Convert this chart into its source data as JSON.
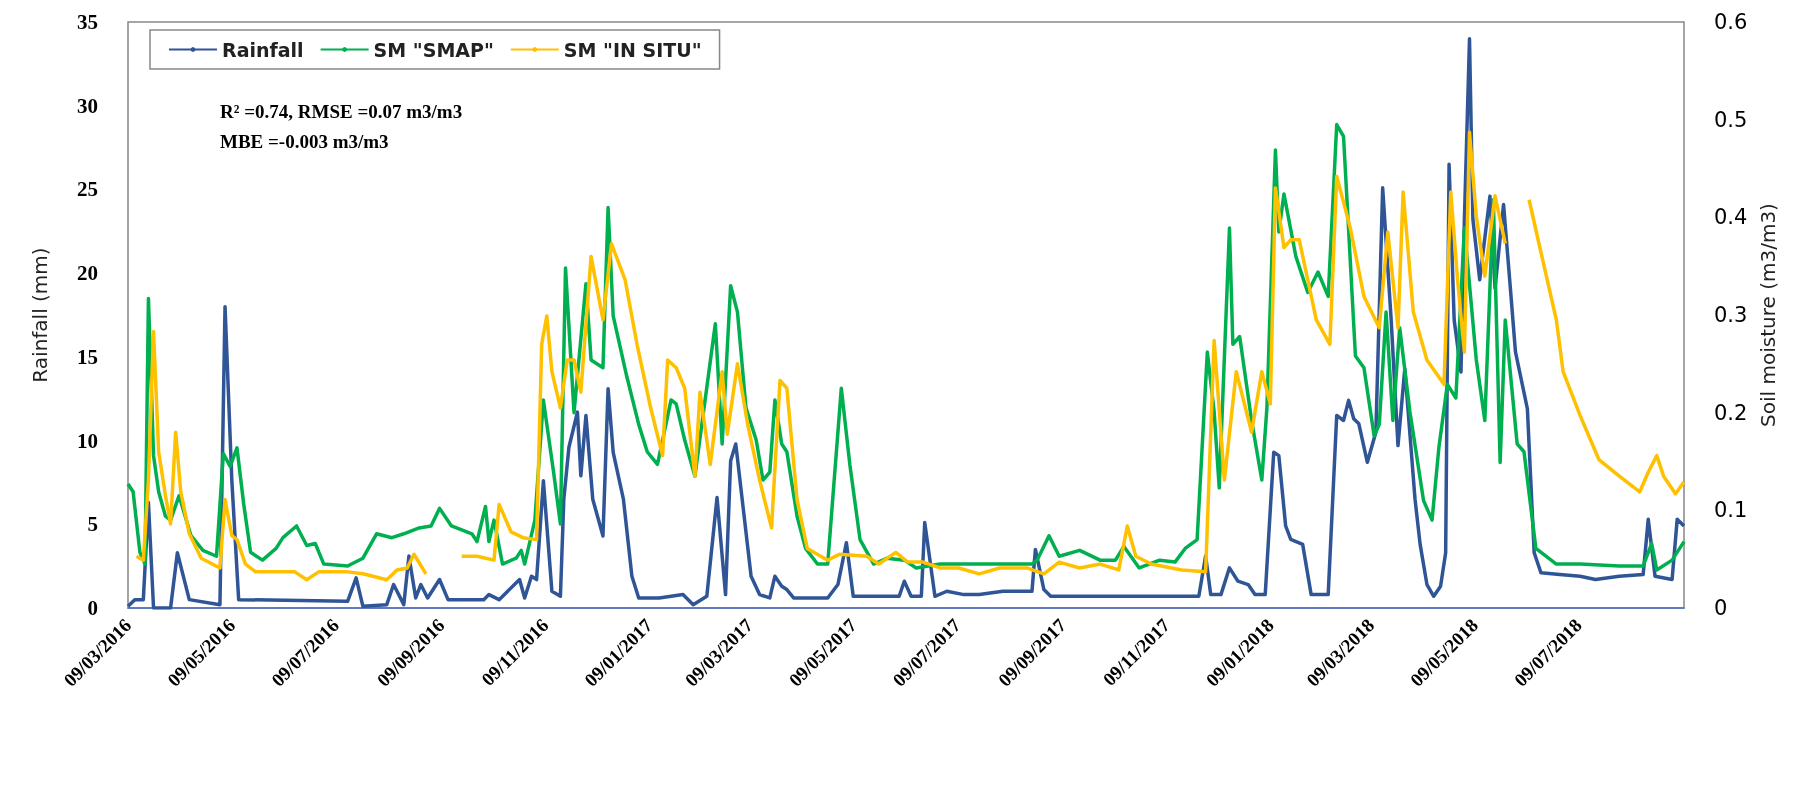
{
  "chart_data": {
    "type": "line",
    "xlabel": null,
    "ylabel": "Rainfall (mm)",
    "y2label": "Soil moisture (m3/m3)",
    "annotations": [
      "R² =0.74, RMSE =0.07 m3/m3",
      "MBE =-0.003 m3/m3"
    ],
    "legend": "top left",
    "grid": false,
    "marker": "none",
    "xlim": [
      "2016-03-09",
      "2018-09-09"
    ],
    "xticks": [
      {
        "value": "2016-03-09",
        "label": "09/03/2016"
      },
      {
        "value": "2016-05-09",
        "label": "09/05/2016"
      },
      {
        "value": "2016-07-09",
        "label": "09/07/2016"
      },
      {
        "value": "2016-09-09",
        "label": "09/09/2016"
      },
      {
        "value": "2016-11-09",
        "label": "09/11/2016"
      },
      {
        "value": "2017-01-09",
        "label": "09/01/2017"
      },
      {
        "value": "2017-03-09",
        "label": "09/03/2017"
      },
      {
        "value": "2017-05-09",
        "label": "09/05/2017"
      },
      {
        "value": "2017-07-09",
        "label": "09/07/2017"
      },
      {
        "value": "2017-09-09",
        "label": "09/09/2017"
      },
      {
        "value": "2017-11-09",
        "label": "09/11/2017"
      },
      {
        "value": "2018-01-09",
        "label": "09/01/2018"
      },
      {
        "value": "2018-03-09",
        "label": "09/03/2018"
      },
      {
        "value": "2018-05-09",
        "label": "09/05/2018"
      },
      {
        "value": "2018-07-09",
        "label": "09/07/2018"
      }
    ],
    "ylim": [
      0,
      35
    ],
    "yticks": [
      0,
      5,
      10,
      15,
      20,
      25,
      30,
      35
    ],
    "y2lim": [
      0,
      0.6
    ],
    "y2ticks": [
      0,
      0.1,
      0.2,
      0.3,
      0.4,
      0.5,
      0.6
    ],
    "series": [
      {
        "name": "Rainfall",
        "color": "#2f5597",
        "x": [
          "2016-03-09",
          "2016-03-13",
          "2016-03-18",
          "2016-03-21",
          "2016-03-24",
          "2016-04-03",
          "2016-04-07",
          "2016-04-14",
          "2016-05-02",
          "2016-05-05",
          "2016-05-09",
          "2016-05-13",
          "2016-07-16",
          "2016-07-21",
          "2016-07-25",
          "2016-08-08",
          "2016-08-12",
          "2016-08-18",
          "2016-08-21",
          "2016-08-25",
          "2016-08-28",
          "2016-09-01",
          "2016-09-08",
          "2016-09-13",
          "2016-10-04",
          "2016-10-07",
          "2016-10-13",
          "2016-10-25",
          "2016-10-28",
          "2016-11-01",
          "2016-11-04",
          "2016-11-08",
          "2016-11-13",
          "2016-11-18",
          "2016-11-20",
          "2016-11-23",
          "2016-11-28",
          "2016-11-30",
          "2016-12-03",
          "2016-12-07",
          "2016-12-13",
          "2016-12-16",
          "2016-12-19",
          "2016-12-25",
          "2016-12-30",
          "2017-01-03",
          "2017-01-15",
          "2017-01-29",
          "2017-02-04",
          "2017-02-12",
          "2017-02-18",
          "2017-02-23",
          "2017-02-26",
          "2017-03-01",
          "2017-03-10",
          "2017-03-15",
          "2017-03-21",
          "2017-03-24",
          "2017-03-28",
          "2017-03-31",
          "2017-04-04",
          "2017-04-24",
          "2017-04-30",
          "2017-05-05",
          "2017-05-09",
          "2017-06-05",
          "2017-06-08",
          "2017-06-12",
          "2017-06-18",
          "2017-06-20",
          "2017-06-26",
          "2017-07-03",
          "2017-07-13",
          "2017-07-22",
          "2017-08-05",
          "2017-08-22",
          "2017-08-24",
          "2017-08-29",
          "2017-09-02",
          "2017-11-28",
          "2017-12-02",
          "2017-12-05",
          "2017-12-11",
          "2017-12-16",
          "2017-12-21",
          "2017-12-27",
          "2017-12-31",
          "2018-01-06",
          "2018-01-11",
          "2018-01-14",
          "2018-01-18",
          "2018-01-21",
          "2018-01-28",
          "2018-02-02",
          "2018-02-12",
          "2018-02-17",
          "2018-02-21",
          "2018-02-24",
          "2018-02-27",
          "2018-03-02",
          "2018-03-07",
          "2018-03-12",
          "2018-03-16",
          "2018-03-21",
          "2018-03-25",
          "2018-03-29",
          "2018-04-04",
          "2018-04-07",
          "2018-04-11",
          "2018-04-15",
          "2018-04-19",
          "2018-04-22",
          "2018-04-24",
          "2018-04-27",
          "2018-05-01",
          "2018-05-03",
          "2018-05-06",
          "2018-05-08",
          "2018-05-12",
          "2018-05-18",
          "2018-05-21",
          "2018-05-26",
          "2018-05-30",
          "2018-06-02",
          "2018-06-09",
          "2018-06-13",
          "2018-06-17",
          "2018-06-28",
          "2018-07-10",
          "2018-07-19",
          "2018-08-02",
          "2018-08-16",
          "2018-08-19",
          "2018-08-23",
          "2018-09-02",
          "2018-09-05",
          "2018-09-09"
        ],
        "values": [
          0.1,
          0.5,
          0.5,
          6.3,
          0,
          0,
          3.3,
          0.5,
          0.2,
          18.0,
          7.6,
          0.5,
          0.4,
          1.8,
          0.1,
          0.2,
          1.4,
          0.2,
          3.1,
          0.6,
          1.4,
          0.6,
          1.7,
          0.5,
          0.5,
          0.8,
          0.5,
          1.7,
          0.6,
          1.9,
          1.7,
          7.6,
          1.0,
          0.7,
          6.5,
          9.6,
          11.7,
          7.9,
          11.5,
          6.5,
          4.3,
          13.1,
          9.3,
          6.5,
          1.9,
          0.6,
          0.6,
          0.8,
          0.2,
          0.7,
          6.6,
          0.8,
          8.8,
          9.8,
          1.9,
          0.8,
          0.6,
          1.9,
          1.3,
          1.1,
          0.6,
          0.6,
          1.4,
          3.9,
          0.7,
          0.7,
          1.6,
          0.7,
          0.7,
          5.1,
          0.7,
          1.0,
          0.8,
          0.8,
          1.0,
          1.0,
          3.5,
          1.1,
          0.7,
          0.7,
          3.1,
          0.8,
          0.8,
          2.4,
          1.6,
          1.4,
          0.8,
          0.8,
          9.3,
          9.1,
          4.9,
          4.1,
          3.8,
          0.8,
          0.8,
          11.5,
          11.2,
          12.4,
          11.3,
          11.0,
          8.7,
          10.5,
          25.1,
          17.2,
          9.7,
          14.3,
          6.5,
          3.8,
          1.4,
          0.7,
          1.3,
          3.3,
          26.5,
          17.2,
          14.1,
          23.2,
          34.0,
          23.2,
          19.6,
          24.6,
          19.1,
          24.1,
          19.1,
          15.3,
          11.9,
          3.3,
          2.1,
          2.0,
          1.9,
          1.7,
          1.9,
          2.0,
          5.3,
          1.9,
          1.7,
          5.3,
          4.9
        ]
      },
      {
        "name": "SM \"SMAP\"",
        "color": "#00b050",
        "axis": "y2",
        "x": [
          "2016-03-09",
          "2016-03-12",
          "2016-03-16",
          "2016-03-19",
          "2016-03-21",
          "2016-03-24",
          "2016-03-27",
          "2016-03-31",
          "2016-04-03",
          "2016-04-08",
          "2016-04-15",
          "2016-04-22",
          "2016-04-30",
          "2016-05-04",
          "2016-05-08",
          "2016-05-12",
          "2016-05-16",
          "2016-05-20",
          "2016-05-27",
          "2016-06-04",
          "2016-06-08",
          "2016-06-16",
          "2016-06-22",
          "2016-06-27",
          "2016-07-02",
          "2016-07-16",
          "2016-07-25",
          "2016-08-02",
          "2016-08-11",
          "2016-08-18",
          "2016-08-27",
          "2016-09-03",
          "2016-09-08",
          "2016-09-15",
          "2016-09-27",
          "2016-09-30",
          "2016-10-05",
          "2016-10-07",
          "2016-10-10",
          "2016-10-15",
          "2016-10-23",
          "2016-10-26",
          "2016-10-28",
          "2016-11-03",
          "2016-11-08",
          "2016-11-14",
          "2016-11-18",
          "2016-11-21",
          "2016-11-26",
          "2016-12-03",
          "2016-12-06",
          "2016-12-13",
          "2016-12-16",
          "2016-12-19",
          "2016-12-27",
          "2017-01-03",
          "2017-01-08",
          "2017-01-14",
          "2017-01-22",
          "2017-01-25",
          "2017-01-30",
          "2017-02-05",
          "2017-02-17",
          "2017-02-21",
          "2017-02-26",
          "2017-03-02",
          "2017-03-07",
          "2017-03-13",
          "2017-03-17",
          "2017-03-21",
          "2017-03-24",
          "2017-03-28",
          "2017-03-31",
          "2017-04-06",
          "2017-04-11",
          "2017-04-18",
          "2017-04-24",
          "2017-05-02",
          "2017-05-07",
          "2017-05-13",
          "2017-05-21",
          "2017-05-29",
          "2017-06-08",
          "2017-06-15",
          "2017-06-29",
          "2017-07-22",
          "2017-08-22",
          "2017-08-25",
          "2017-09-01",
          "2017-09-07",
          "2017-09-19",
          "2017-10-01",
          "2017-10-10",
          "2017-10-15",
          "2017-10-24",
          "2017-11-05",
          "2017-11-14",
          "2017-11-20",
          "2017-11-27",
          "2017-12-03",
          "2017-12-07",
          "2017-12-10",
          "2017-12-16",
          "2017-12-18",
          "2017-12-22",
          "2017-12-29",
          "2018-01-04",
          "2018-01-07",
          "2018-01-12",
          "2018-01-14",
          "2018-01-17",
          "2018-01-24",
          "2018-01-31",
          "2018-02-06",
          "2018-02-12",
          "2018-02-17",
          "2018-02-21",
          "2018-02-28",
          "2018-03-05",
          "2018-03-11",
          "2018-03-14",
          "2018-03-18",
          "2018-03-22",
          "2018-03-26",
          "2018-04-01",
          "2018-04-09",
          "2018-04-14",
          "2018-04-18",
          "2018-04-23",
          "2018-04-28",
          "2018-05-03",
          "2018-05-10",
          "2018-05-15",
          "2018-05-20",
          "2018-05-24",
          "2018-05-27",
          "2018-06-03",
          "2018-06-07",
          "2018-06-14",
          "2018-06-26",
          "2018-07-10",
          "2018-08-02",
          "2018-08-16",
          "2018-08-21",
          "2018-08-24",
          "2018-09-02",
          "2018-09-09"
        ],
        "values": [
          0.127,
          0.119,
          0.057,
          0.045,
          0.317,
          0.156,
          0.119,
          0.094,
          0.09,
          0.115,
          0.074,
          0.059,
          0.053,
          0.158,
          0.145,
          0.164,
          0.106,
          0.057,
          0.049,
          0.061,
          0.072,
          0.084,
          0.064,
          0.066,
          0.045,
          0.043,
          0.051,
          0.076,
          0.072,
          0.076,
          0.082,
          0.084,
          0.102,
          0.084,
          0.076,
          0.068,
          0.104,
          0.068,
          0.09,
          0.045,
          0.051,
          0.059,
          0.045,
          0.09,
          0.213,
          0.139,
          0.086,
          0.348,
          0.2,
          0.332,
          0.254,
          0.246,
          0.41,
          0.299,
          0.237,
          0.188,
          0.16,
          0.147,
          0.213,
          0.209,
          0.172,
          0.135,
          0.291,
          0.168,
          0.33,
          0.303,
          0.205,
          0.172,
          0.131,
          0.139,
          0.213,
          0.168,
          0.16,
          0.094,
          0.061,
          0.045,
          0.045,
          0.225,
          0.147,
          0.07,
          0.045,
          0.051,
          0.049,
          0.041,
          0.045,
          0.045,
          0.045,
          0.049,
          0.074,
          0.053,
          0.059,
          0.049,
          0.049,
          0.063,
          0.041,
          0.049,
          0.047,
          0.061,
          0.07,
          0.262,
          0.201,
          0.123,
          0.389,
          0.27,
          0.278,
          0.192,
          0.131,
          0.205,
          0.469,
          0.385,
          0.424,
          0.36,
          0.323,
          0.344,
          0.319,
          0.495,
          0.483,
          0.258,
          0.246,
          0.176,
          0.188,
          0.303,
          0.192,
          0.287,
          0.201,
          0.11,
          0.09,
          0.164,
          0.229,
          0.215,
          0.389,
          0.254,
          0.192,
          0.418,
          0.149,
          0.295,
          0.168,
          0.16,
          0.061,
          0.045,
          0.045,
          0.043,
          0.043,
          0.066,
          0.039,
          0.049,
          0.068
        ]
      },
      {
        "name": "SM \"IN SITU\"",
        "color": "#ffc000",
        "axis": "y2",
        "x": [
          "2016-03-14",
          "2016-03-18",
          "2016-03-21",
          "2016-03-24",
          "2016-03-27",
          "2016-03-31",
          "2016-04-03",
          "2016-04-06",
          "2016-04-09",
          "2016-04-14",
          "2016-04-21",
          "2016-05-02",
          "2016-05-05",
          "2016-05-09",
          "2016-05-12",
          "2016-05-17",
          "2016-05-23",
          "2016-06-15",
          "2016-06-22",
          "2016-06-29",
          "2016-07-16",
          "2016-07-25",
          "2016-08-08",
          "2016-08-14",
          "2016-08-20",
          "2016-08-24",
          "2016-08-31",
          "2016-09-10",
          "2016-09-21",
          "2016-09-30",
          "2016-10-10",
          "2016-10-13",
          "2016-10-20",
          "2016-10-27",
          "2016-11-04",
          "2016-11-07",
          "2016-11-10",
          "2016-11-13",
          "2016-11-18",
          "2016-11-22",
          "2016-11-26",
          "2016-11-30",
          "2016-12-06",
          "2016-12-13",
          "2016-12-18",
          "2016-12-26",
          "2017-01-02",
          "2017-01-10",
          "2017-01-17",
          "2017-01-20",
          "2017-01-25",
          "2017-01-30",
          "2017-02-05",
          "2017-02-08",
          "2017-02-14",
          "2017-02-21",
          "2017-02-24",
          "2017-03-02",
          "2017-03-08",
          "2017-03-15",
          "2017-03-22",
          "2017-03-27",
          "2017-03-31",
          "2017-04-06",
          "2017-04-12",
          "2017-04-24",
          "2017-05-01",
          "2017-05-17",
          "2017-05-24",
          "2017-06-03",
          "2017-06-10",
          "2017-06-19",
          "2017-06-29",
          "2017-07-10",
          "2017-07-22",
          "2017-08-03",
          "2017-08-19",
          "2017-08-29",
          "2017-09-07",
          "2017-09-19",
          "2017-10-01",
          "2017-10-12",
          "2017-10-17",
          "2017-10-22",
          "2017-10-31",
          "2017-11-18",
          "2017-12-02",
          "2017-12-07",
          "2017-12-13",
          "2017-12-20",
          "2017-12-29",
          "2018-01-04",
          "2018-01-09",
          "2018-01-12",
          "2018-01-17",
          "2018-01-21",
          "2018-01-26",
          "2018-02-05",
          "2018-02-13",
          "2018-02-17",
          "2018-02-25",
          "2018-03-05",
          "2018-03-14",
          "2018-03-19",
          "2018-03-25",
          "2018-03-28",
          "2018-04-03",
          "2018-04-11",
          "2018-04-21",
          "2018-04-25",
          "2018-04-29",
          "2018-05-03",
          "2018-05-06",
          "2018-05-10",
          "2018-05-15",
          "2018-05-21",
          "2018-05-27",
          "2018-06-03",
          "2018-06-10",
          "2018-06-17",
          "2018-06-26",
          "2018-06-30",
          "2018-07-10",
          "2018-07-21",
          "2018-08-02",
          "2018-08-14",
          "2018-08-19",
          "2018-08-24",
          "2018-08-28",
          "2018-09-04",
          "2018-09-09"
        ],
        "values": [
          0.053,
          0.049,
          0.131,
          0.283,
          0.16,
          0.115,
          0.086,
          0.18,
          0.119,
          0.076,
          0.051,
          0.041,
          0.111,
          0.074,
          0.07,
          0.045,
          0.037,
          0.037,
          0.029,
          0.037,
          0.037,
          0.035,
          0.029,
          0.039,
          0.041,
          0.055,
          0.035,
          null,
          0.053,
          0.053,
          0.049,
          0.106,
          0.078,
          0.072,
          0.07,
          0.27,
          0.299,
          0.242,
          0.205,
          0.254,
          0.254,
          0.221,
          0.36,
          0.295,
          0.373,
          0.336,
          0.27,
          0.205,
          0.156,
          0.254,
          0.246,
          0.225,
          0.135,
          0.221,
          0.147,
          0.242,
          0.178,
          0.25,
          0.188,
          0.131,
          0.082,
          0.233,
          0.225,
          0.111,
          0.061,
          0.049,
          0.055,
          0.053,
          0.045,
          0.057,
          0.047,
          0.047,
          0.041,
          0.041,
          0.035,
          0.041,
          0.041,
          0.035,
          0.047,
          0.041,
          0.045,
          0.039,
          0.084,
          0.053,
          0.045,
          0.039,
          0.037,
          0.274,
          0.131,
          0.242,
          0.18,
          0.242,
          0.209,
          0.43,
          0.369,
          0.377,
          0.377,
          0.295,
          0.27,
          0.442,
          0.389,
          0.319,
          0.287,
          0.385,
          0.287,
          0.426,
          0.303,
          0.254,
          0.229,
          0.426,
          0.336,
          0.262,
          0.487,
          0.401,
          0.34,
          0.422,
          0.373,
          null,
          0.418,
          0.364,
          0.295,
          0.242,
          0.197,
          0.152,
          0.135,
          0.119,
          0.139,
          0.156,
          0.135,
          0.117,
          0.129
        ]
      }
    ]
  }
}
